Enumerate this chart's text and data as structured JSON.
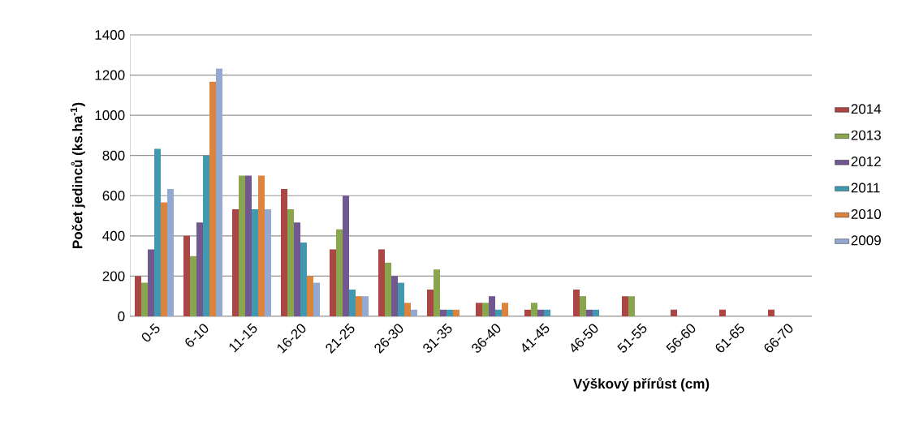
{
  "chart_data": {
    "type": "bar",
    "xlabel": "Výškový přírůst (cm)",
    "ylabel": "Počet jedinců (ks.ha$^{-1}$)",
    "categories": [
      "0-5",
      "6-10",
      "11-15",
      "16-20",
      "21-25",
      "26-30",
      "31-35",
      "36-40",
      "41-45",
      "46-50",
      "51-55",
      "56-60",
      "61-65",
      "66-70"
    ],
    "series": [
      {
        "name": "2014",
        "color": "#aa4643",
        "values": [
          200,
          400,
          533,
          633,
          333,
          333,
          133,
          67,
          33,
          133,
          100,
          33,
          33,
          33
        ]
      },
      {
        "name": "2013",
        "color": "#89a54e",
        "values": [
          167,
          300,
          700,
          533,
          433,
          267,
          233,
          67,
          67,
          100,
          100,
          0,
          0,
          0
        ]
      },
      {
        "name": "2012",
        "color": "#71588f",
        "values": [
          333,
          467,
          700,
          467,
          600,
          200,
          33,
          100,
          33,
          33,
          0,
          0,
          0,
          0
        ]
      },
      {
        "name": "2011",
        "color": "#4198af",
        "values": [
          833,
          800,
          533,
          367,
          133,
          167,
          33,
          33,
          33,
          33,
          0,
          0,
          0,
          0
        ]
      },
      {
        "name": "2010",
        "color": "#db843d",
        "values": [
          567,
          1167,
          700,
          200,
          100,
          67,
          33,
          67,
          0,
          0,
          0,
          0,
          0,
          0
        ]
      },
      {
        "name": "2009",
        "color": "#93a9cf",
        "values": [
          633,
          1233,
          533,
          167,
          100,
          33,
          0,
          0,
          0,
          0,
          0,
          0,
          0,
          0
        ]
      }
    ],
    "ylim": [
      0,
      1400
    ],
    "yticks": [
      0,
      200,
      400,
      600,
      800,
      1000,
      1200,
      1400
    ],
    "grid": "y",
    "legend": "right"
  }
}
